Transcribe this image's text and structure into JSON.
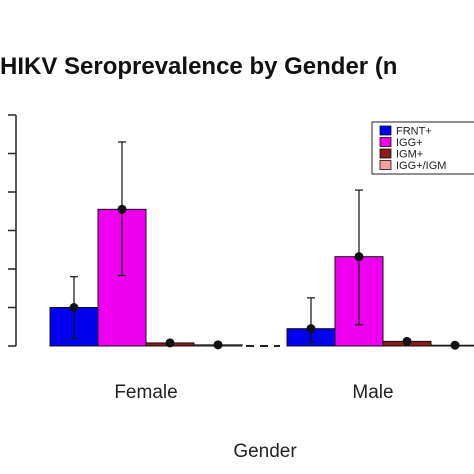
{
  "chart_data": {
    "type": "bar",
    "title": "HIKV Seroprevalence by Gender (n",
    "xlabel": "Gender",
    "ylabel": "",
    "categories": [
      "Female",
      "Male"
    ],
    "ylim": [
      0,
      6
    ],
    "series": [
      {
        "name": "FRNT+",
        "color": "#0000ee",
        "values": [
          1.0,
          0.45
        ],
        "err_low": [
          0.2,
          0.1
        ],
        "err_high": [
          1.8,
          1.25
        ]
      },
      {
        "name": "IGG+",
        "color": "#ee00ee",
        "values": [
          3.55,
          2.32
        ],
        "err_low": [
          1.83,
          0.55
        ],
        "err_high": [
          5.3,
          4.05
        ]
      },
      {
        "name": "IGM+",
        "color": "#8b1a1a",
        "values": [
          0.08,
          0.12
        ],
        "err_low": [
          0.08,
          0.12
        ],
        "err_high": [
          0.08,
          0.12
        ]
      },
      {
        "name": "IGG+/IGM",
        "color": "#f4a0a0",
        "values": [
          0.03,
          0.02
        ],
        "err_low": [
          0.03,
          0.02
        ],
        "err_high": [
          0.03,
          0.02
        ]
      }
    ],
    "legend_position": "top-right",
    "grid": false
  }
}
